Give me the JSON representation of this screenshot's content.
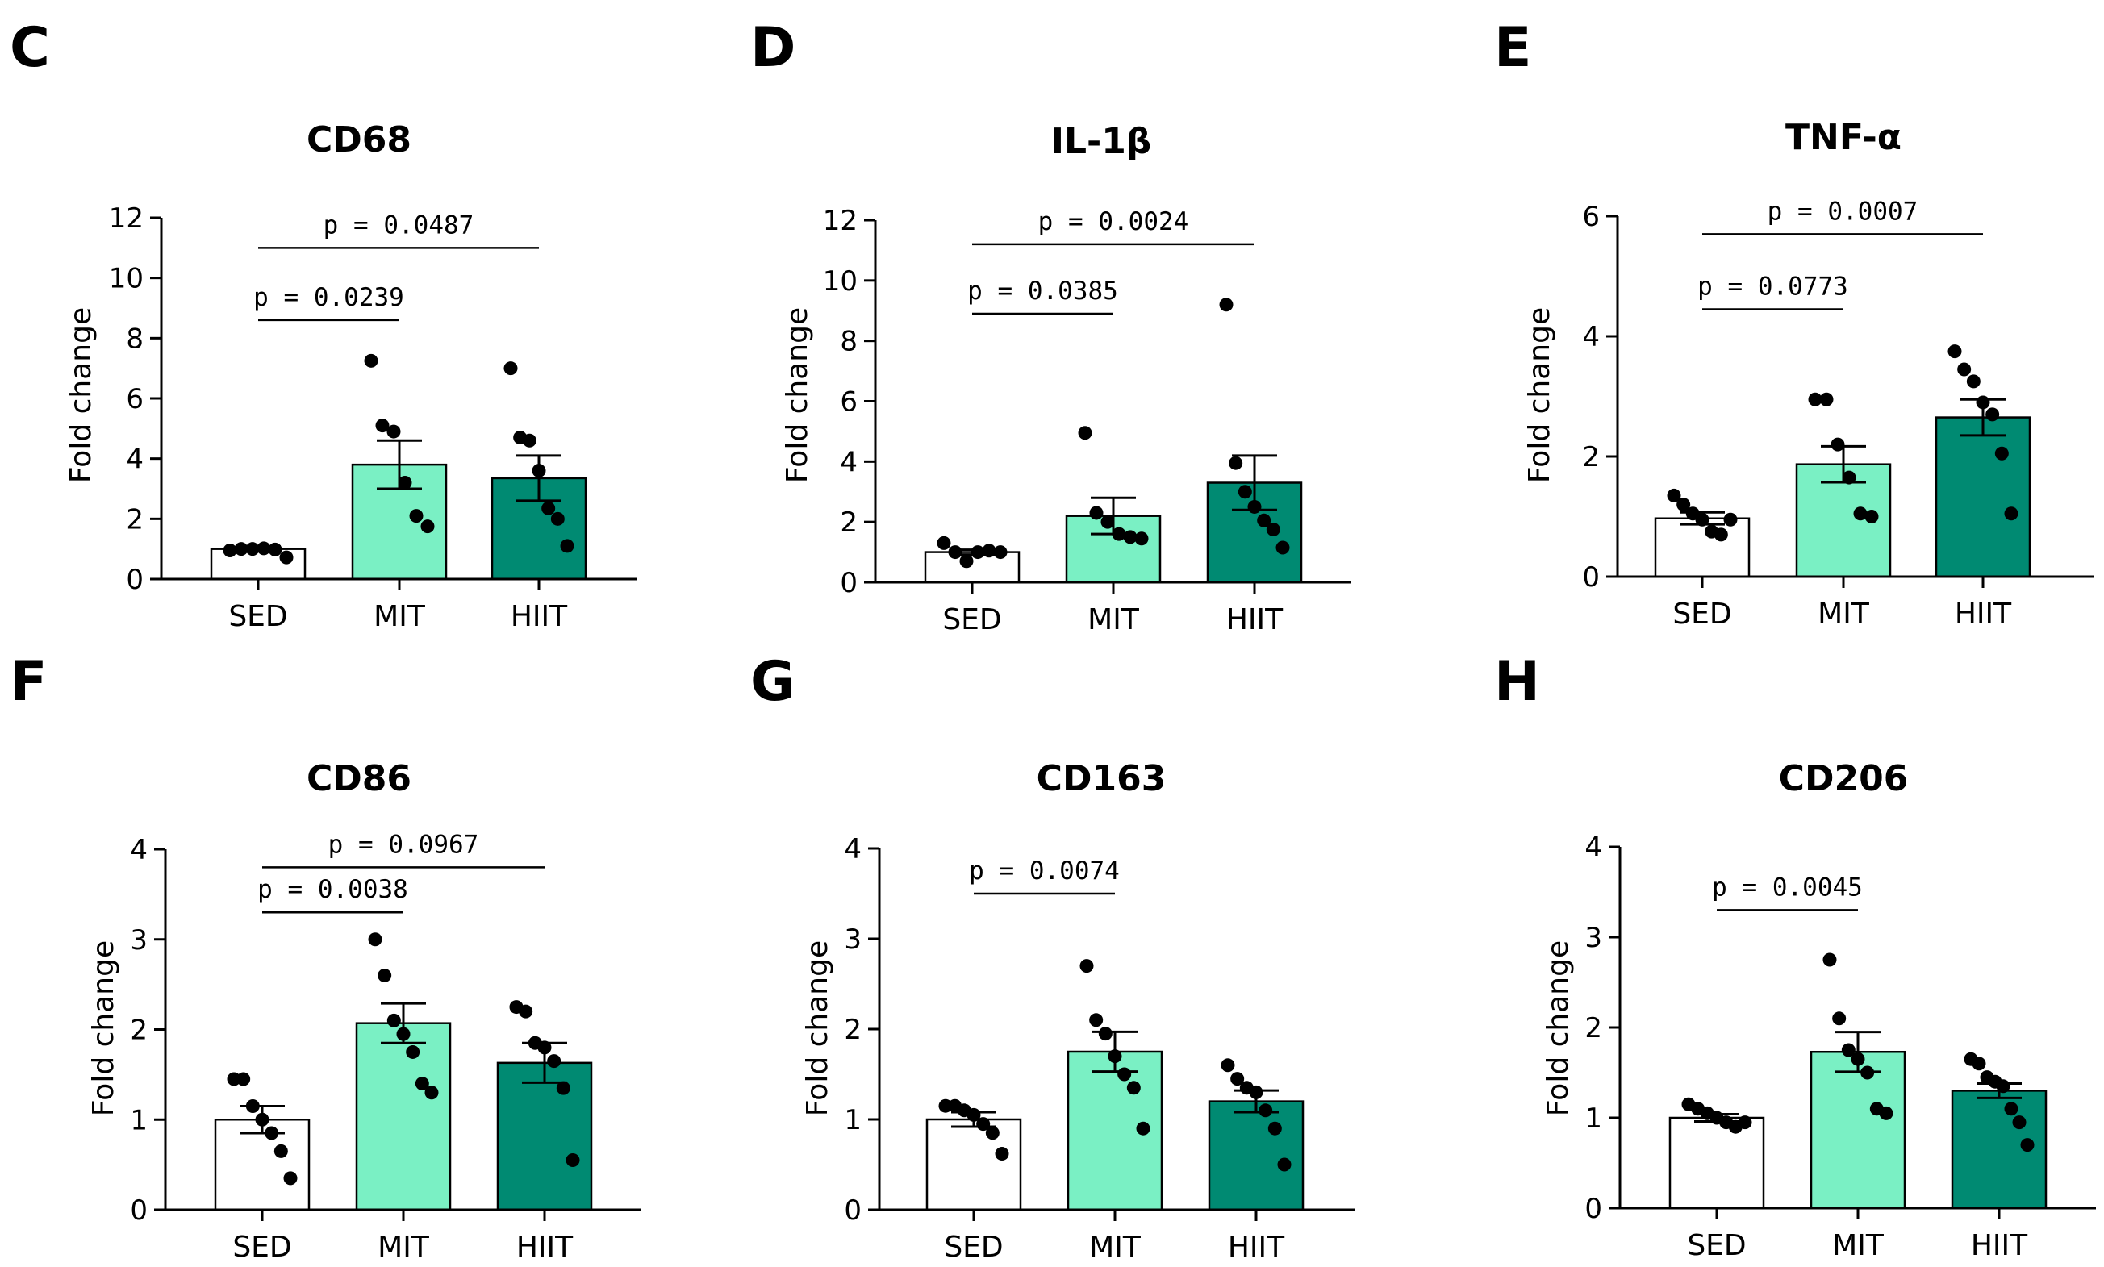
{
  "colors": {
    "SED": "#ffffff",
    "MIT": "#7af0c4",
    "HIIT": "#008a72",
    "text": "#000000",
    "sig_line": "#000000"
  },
  "chart_data": [
    {
      "panel": "C",
      "type": "bar",
      "title": "CD68",
      "ylabel": "Fold change",
      "categories": [
        "SED",
        "MIT",
        "HIIT"
      ],
      "values": [
        1.0,
        3.8,
        3.35
      ],
      "sem": [
        0.08,
        0.8,
        0.75
      ],
      "ylim": [
        0,
        12
      ],
      "yticks": [
        0,
        2,
        4,
        6,
        8,
        10,
        12
      ],
      "points": [
        [
          0.95,
          1.0,
          1.0,
          1.02,
          0.98,
          0.72
        ],
        [
          7.25,
          5.1,
          4.9,
          3.2,
          2.1,
          1.75
        ],
        [
          7.0,
          4.7,
          4.6,
          3.6,
          2.35,
          2.0,
          1.1
        ]
      ],
      "comparisons": [
        {
          "from": "SED",
          "to": "MIT",
          "label": "p = 0.0239",
          "y": 8.6
        },
        {
          "from": "SED",
          "to": "HIIT",
          "label": "p = 0.0487",
          "y": 11.0
        }
      ]
    },
    {
      "panel": "D",
      "type": "bar",
      "title": "IL-1β",
      "ylabel": "Fold change",
      "categories": [
        "SED",
        "MIT",
        "HIIT"
      ],
      "values": [
        1.0,
        2.2,
        3.3
      ],
      "sem": [
        0.08,
        0.6,
        0.9
      ],
      "ylim": [
        0,
        12
      ],
      "yticks": [
        0,
        2,
        4,
        6,
        8,
        10,
        12
      ],
      "points": [
        [
          1.3,
          1.0,
          0.7,
          1.0,
          1.05,
          1.0
        ],
        [
          4.95,
          2.3,
          2.0,
          1.6,
          1.5,
          1.45
        ],
        [
          9.2,
          3.95,
          3.0,
          2.5,
          2.05,
          1.75,
          1.15
        ]
      ],
      "comparisons": [
        {
          "from": "SED",
          "to": "MIT",
          "label": "p = 0.0385",
          "y": 8.9
        },
        {
          "from": "SED",
          "to": "HIIT",
          "label": "p = 0.0024",
          "y": 11.2
        }
      ]
    },
    {
      "panel": "E",
      "type": "bar",
      "title": "TNF-α",
      "ylabel": "Fold change",
      "categories": [
        "SED",
        "MIT",
        "HIIT"
      ],
      "values": [
        0.97,
        1.87,
        2.65
      ],
      "sem": [
        0.1,
        0.3,
        0.3
      ],
      "ylim": [
        0,
        6
      ],
      "yticks": [
        0,
        2,
        4,
        6
      ],
      "points": [
        [
          1.35,
          1.2,
          1.05,
          0.95,
          0.75,
          0.7,
          0.95
        ],
        [
          2.95,
          2.95,
          2.2,
          1.65,
          1.05,
          1.0
        ],
        [
          3.75,
          3.45,
          3.25,
          2.9,
          2.7,
          2.05,
          1.05
        ]
      ],
      "comparisons": [
        {
          "from": "SED",
          "to": "MIT",
          "label": "p = 0.0773",
          "y": 4.45
        },
        {
          "from": "SED",
          "to": "HIIT",
          "label": "p = 0.0007",
          "y": 5.7
        }
      ]
    },
    {
      "panel": "F",
      "type": "bar",
      "title": "CD86",
      "ylabel": "Fold change",
      "categories": [
        "SED",
        "MIT",
        "HIIT"
      ],
      "values": [
        1.0,
        2.07,
        1.63
      ],
      "sem": [
        0.15,
        0.22,
        0.22
      ],
      "ylim": [
        0,
        4
      ],
      "yticks": [
        0,
        1,
        2,
        3,
        4
      ],
      "points": [
        [
          1.45,
          1.45,
          1.15,
          1.0,
          0.85,
          0.65,
          0.35
        ],
        [
          3.0,
          2.6,
          2.1,
          1.95,
          1.75,
          1.4,
          1.3
        ],
        [
          2.25,
          2.2,
          1.85,
          1.8,
          1.65,
          1.35,
          0.55
        ]
      ],
      "comparisons": [
        {
          "from": "SED",
          "to": "MIT",
          "label": "p = 0.0038",
          "y": 3.3
        },
        {
          "from": "SED",
          "to": "HIIT",
          "label": "p = 0.0967",
          "y": 3.8
        }
      ]
    },
    {
      "panel": "G",
      "type": "bar",
      "title": "CD163",
      "ylabel": "Fold change",
      "categories": [
        "SED",
        "MIT",
        "HIIT"
      ],
      "values": [
        1.0,
        1.75,
        1.2
      ],
      "sem": [
        0.08,
        0.22,
        0.12
      ],
      "ylim": [
        0,
        4
      ],
      "yticks": [
        0,
        1,
        2,
        3,
        4
      ],
      "points": [
        [
          1.15,
          1.15,
          1.1,
          1.05,
          0.95,
          0.85,
          0.62
        ],
        [
          2.7,
          2.1,
          1.95,
          1.7,
          1.5,
          1.35,
          0.9
        ],
        [
          1.6,
          1.45,
          1.35,
          1.3,
          1.1,
          0.9,
          0.5
        ]
      ],
      "comparisons": [
        {
          "from": "SED",
          "to": "MIT",
          "label": "p = 0.0074",
          "y": 3.5
        }
      ]
    },
    {
      "panel": "H",
      "type": "bar",
      "title": "CD206",
      "ylabel": "Fold change",
      "categories": [
        "SED",
        "MIT",
        "HIIT"
      ],
      "values": [
        1.0,
        1.73,
        1.3
      ],
      "sem": [
        0.04,
        0.22,
        0.08
      ],
      "ylim": [
        0,
        4
      ],
      "yticks": [
        0,
        1,
        2,
        3,
        4
      ],
      "points": [
        [
          1.15,
          1.1,
          1.05,
          1.0,
          0.95,
          0.9,
          0.95
        ],
        [
          2.75,
          2.1,
          1.75,
          1.65,
          1.5,
          1.1,
          1.05
        ],
        [
          1.65,
          1.6,
          1.45,
          1.4,
          1.35,
          1.1,
          0.95,
          0.7
        ]
      ],
      "comparisons": [
        {
          "from": "SED",
          "to": "MIT",
          "label": "p = 0.0045",
          "y": 3.3
        }
      ]
    }
  ]
}
